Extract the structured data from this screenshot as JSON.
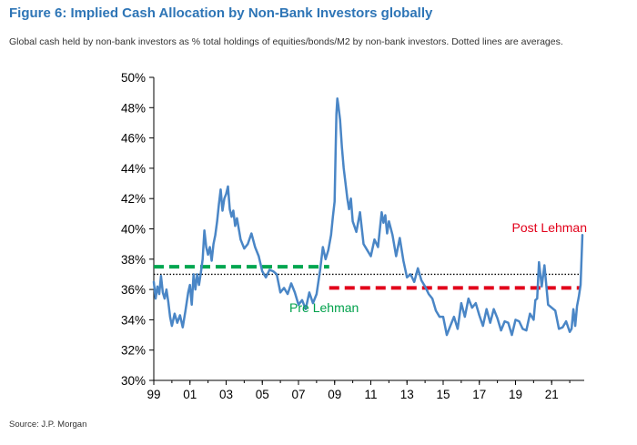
{
  "figure": {
    "title": "Figure 6: Implied Cash Allocation by Non-Bank Investors globally",
    "subtitle": "Global cash held by non-bank investors as % total holdings of equities/bonds/M2 by non-bank investors. Dotted lines are averages.",
    "source": "Source: J.P. Morgan"
  },
  "chart_data": {
    "type": "line",
    "title": "Figure 6: Implied Cash Allocation by Non-Bank Investors globally",
    "xlabel": "",
    "ylabel": "",
    "xlim": [
      1999,
      2022.8
    ],
    "ylim": [
      30,
      50
    ],
    "x_ticks": [
      1999,
      2001,
      2003,
      2005,
      2007,
      2009,
      2011,
      2013,
      2015,
      2017,
      2019,
      2021
    ],
    "x_tick_labels": [
      "99",
      "01",
      "03",
      "05",
      "07",
      "09",
      "11",
      "13",
      "15",
      "17",
      "19",
      "21"
    ],
    "y_ticks": [
      30,
      32,
      34,
      36,
      38,
      40,
      42,
      44,
      46,
      48,
      50
    ],
    "y_tick_labels": [
      "30%",
      "32%",
      "34%",
      "36%",
      "38%",
      "40%",
      "42%",
      "44%",
      "46%",
      "48%",
      "50%"
    ],
    "grid": false,
    "series": [
      {
        "color": "#4a86c6",
        "x": [
          1999.0,
          1999.1,
          1999.2,
          1999.3,
          1999.4,
          1999.5,
          1999.6,
          1999.7,
          1999.8,
          1999.9,
          2000.0,
          2000.15,
          2000.3,
          2000.45,
          2000.6,
          2000.75,
          2000.9,
          2001.0,
          2001.1,
          2001.2,
          2001.3,
          2001.4,
          2001.5,
          2001.6,
          2001.7,
          2001.8,
          2001.9,
          2002.0,
          2002.1,
          2002.2,
          2002.3,
          2002.4,
          2002.5,
          2002.6,
          2002.7,
          2002.8,
          2002.9,
          2003.0,
          2003.1,
          2003.2,
          2003.3,
          2003.4,
          2003.5,
          2003.6,
          2003.8,
          2004.0,
          2004.2,
          2004.4,
          2004.6,
          2004.8,
          2005.0,
          2005.2,
          2005.4,
          2005.6,
          2005.8,
          2006.0,
          2006.2,
          2006.4,
          2006.6,
          2006.8,
          2007.0,
          2007.2,
          2007.4,
          2007.6,
          2007.8,
          2008.0,
          2008.2,
          2008.35,
          2008.5,
          2008.65,
          2008.8,
          2008.9,
          2009.0,
          2009.05,
          2009.1,
          2009.15,
          2009.2,
          2009.3,
          2009.4,
          2009.5,
          2009.6,
          2009.7,
          2009.8,
          2009.9,
          2010.0,
          2010.2,
          2010.4,
          2010.6,
          2010.8,
          2011.0,
          2011.2,
          2011.4,
          2011.6,
          2011.7,
          2011.8,
          2011.9,
          2012.0,
          2012.2,
          2012.4,
          2012.6,
          2012.8,
          2013.0,
          2013.2,
          2013.4,
          2013.6,
          2013.8,
          2014.0,
          2014.2,
          2014.4,
          2014.6,
          2014.8,
          2015.0,
          2015.2,
          2015.4,
          2015.6,
          2015.8,
          2016.0,
          2016.2,
          2016.4,
          2016.6,
          2016.8,
          2017.0,
          2017.2,
          2017.4,
          2017.6,
          2017.8,
          2018.0,
          2018.2,
          2018.4,
          2018.6,
          2018.8,
          2019.0,
          2019.2,
          2019.4,
          2019.6,
          2019.8,
          2020.0,
          2020.1,
          2020.2,
          2020.3,
          2020.45,
          2020.6,
          2020.8,
          2021.0,
          2021.2,
          2021.4,
          2021.6,
          2021.8,
          2022.0,
          2022.1,
          2022.2,
          2022.3,
          2022.4,
          2022.5,
          2022.6,
          2022.7
        ],
        "values": [
          36.5,
          35.4,
          36.2,
          35.7,
          36.9,
          35.8,
          35.4,
          36.0,
          35.2,
          34.2,
          33.6,
          34.4,
          33.8,
          34.3,
          33.5,
          34.6,
          35.8,
          36.3,
          35.0,
          37.0,
          36.0,
          37.0,
          36.3,
          37.1,
          38.0,
          39.9,
          38.8,
          38.3,
          38.8,
          37.9,
          39.0,
          39.6,
          40.5,
          41.6,
          42.6,
          41.2,
          42.0,
          42.3,
          42.8,
          41.3,
          40.8,
          41.2,
          40.2,
          40.7,
          39.3,
          38.7,
          39.0,
          39.7,
          38.8,
          38.2,
          37.2,
          36.8,
          37.3,
          37.2,
          37.0,
          35.8,
          36.1,
          35.7,
          36.4,
          35.8,
          35.0,
          35.3,
          34.7,
          35.8,
          35.1,
          35.7,
          37.3,
          38.8,
          38.0,
          38.6,
          39.6,
          40.8,
          41.8,
          44.8,
          47.6,
          48.6,
          48.2,
          47.2,
          45.4,
          44.0,
          43.0,
          42.0,
          41.3,
          42.0,
          40.5,
          39.8,
          41.1,
          39.0,
          38.6,
          38.2,
          39.3,
          38.8,
          41.1,
          40.4,
          40.9,
          39.7,
          40.5,
          39.6,
          38.2,
          39.4,
          37.9,
          36.8,
          37.0,
          36.5,
          37.4,
          36.6,
          36.2,
          35.7,
          35.4,
          34.6,
          34.2,
          34.2,
          33.0,
          33.6,
          34.2,
          33.4,
          35.1,
          34.2,
          35.4,
          34.8,
          35.1,
          34.3,
          33.6,
          34.7,
          33.8,
          34.7,
          34.1,
          33.3,
          33.9,
          33.8,
          33.0,
          34.0,
          33.9,
          33.4,
          33.3,
          34.4,
          34.0,
          35.3,
          35.4,
          37.8,
          36.2,
          37.6,
          35.0,
          34.8,
          34.6,
          33.4,
          33.5,
          33.9,
          33.2,
          33.4,
          34.7,
          33.6,
          34.9,
          35.5,
          36.3,
          39.6
        ]
      }
    ],
    "annotations": [
      {
        "text": "Post Lehman",
        "x": 2018.8,
        "y": 39.8,
        "color": "#e2001a"
      },
      {
        "text": "Pre Lehman",
        "x": 2006.5,
        "y": 34.5,
        "color": "#00a14b"
      }
    ],
    "reference_lines": [
      {
        "style": "dashed",
        "color": "#00a650",
        "value": 37.5,
        "x_start": 1999.0,
        "x_end": 2008.7
      },
      {
        "style": "dashed",
        "color": "#e2001a",
        "value": 36.1,
        "x_start": 2008.7,
        "x_end": 2022.6
      },
      {
        "style": "dotted",
        "color": "#000000",
        "value": 37.0,
        "x_start": 1999.0,
        "x_end": 2022.6
      }
    ]
  }
}
